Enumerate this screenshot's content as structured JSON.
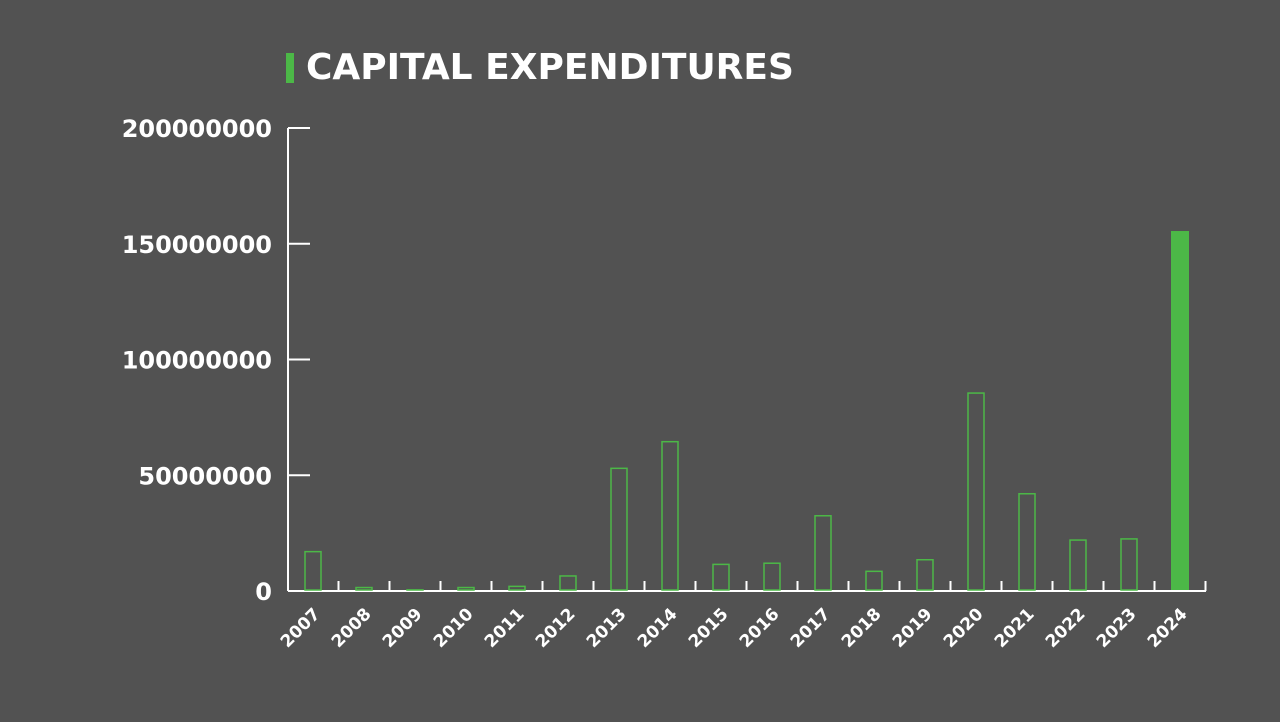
{
  "colors": {
    "background": "#525252",
    "accent": "#4cb847",
    "axis": "#ffffff",
    "text": "#ffffff"
  },
  "chart_data": {
    "type": "bar",
    "title": "CAPITAL EXPENDITURES",
    "xlabel": "",
    "ylabel": "",
    "ylim": [
      0,
      200000000
    ],
    "yticks": [
      0,
      50000000,
      100000000,
      150000000,
      200000000
    ],
    "ytick_labels": [
      "0",
      "50000000",
      "100000000",
      "150000000",
      "200000000"
    ],
    "categories": [
      "2007",
      "2008",
      "2009",
      "2010",
      "2011",
      "2012",
      "2013",
      "2014",
      "2015",
      "2016",
      "2017",
      "2018",
      "2019",
      "2020",
      "2021",
      "2022",
      "2023",
      "2024"
    ],
    "values": [
      17000000,
      1500000,
      500000,
      1500000,
      2000000,
      6500000,
      53000000,
      64500000,
      11500000,
      12000000,
      32500000,
      8500000,
      13500000,
      85500000,
      42000000,
      22000000,
      22500000,
      155500000
    ],
    "highlight_category": "2024",
    "grid": false,
    "legend": "none"
  }
}
